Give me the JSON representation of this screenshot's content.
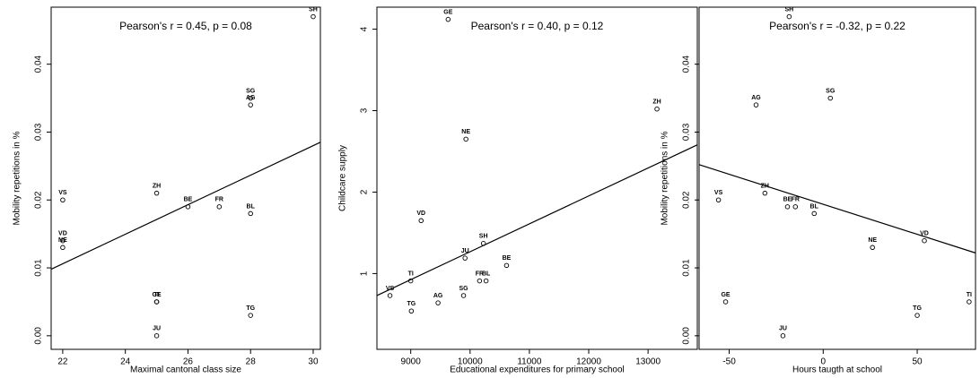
{
  "chart_data": [
    {
      "type": "scatter",
      "annotation": "Pearson's r = 0.45, p = 0.08",
      "xlabel": "Maximal cantonal class size",
      "ylabel": "Mobility repetitions in %",
      "point_labels": [
        "VS",
        "VD",
        "NE",
        "ZH",
        "BE",
        "FR",
        "BL",
        "GE",
        "TI",
        "TG",
        "JU",
        "SH",
        "SG",
        "AG"
      ],
      "x": [
        22,
        22,
        22,
        25,
        26,
        27,
        28,
        25,
        25,
        28,
        25,
        30,
        28,
        28
      ],
      "values": [
        0.02,
        0.014,
        0.013,
        0.021,
        0.019,
        0.019,
        0.018,
        0.005,
        0.005,
        0.003,
        0.0,
        0.047,
        0.035,
        0.034
      ],
      "color": "#000000",
      "trend": {
        "x": [
          21.63,
          30.23
        ],
        "y": [
          0.0098,
          0.0285
        ]
      },
      "xlim": [
        21.63,
        30.23
      ],
      "ylim": [
        -0.002,
        0.0484
      ],
      "xticks": [
        22,
        24,
        26,
        28,
        30
      ],
      "yticks": [
        {
          "value": 0,
          "label": "0.00"
        },
        0.01,
        0.02,
        0.03,
        0.04
      ]
    },
    {
      "type": "scatter",
      "annotation": "Pearson's r = 0.40, p = 0.12",
      "xlabel": "Educational expenditures for primary school",
      "ylabel": "Childcare supply",
      "point_labels": [
        "GE",
        "ZH",
        "NE",
        "VD",
        "SH",
        "JU",
        "BE",
        "FR",
        "BL",
        "TI",
        "VS",
        "AG",
        "SG",
        "TG"
      ],
      "x": [
        9630,
        13150,
        9930,
        9175,
        10225,
        9915,
        10615,
        10160,
        10270,
        9000,
        8650,
        9460,
        9890,
        9010
      ],
      "values": [
        4.12,
        3.02,
        2.65,
        1.65,
        1.37,
        1.19,
        1.1,
        0.91,
        0.91,
        0.91,
        0.73,
        0.64,
        0.73,
        0.54
      ],
      "color": "#000000",
      "trend": {
        "x": [
          8430,
          13830
        ],
        "y": [
          0.73,
          2.58
        ]
      },
      "xlim": [
        8430,
        13830
      ],
      "ylim": [
        0.07,
        4.27
      ],
      "xticks": [
        9000,
        10000,
        11000,
        12000,
        13000
      ],
      "yticks": [
        1,
        2,
        3,
        4
      ]
    },
    {
      "type": "scatter",
      "annotation": "Pearson's r = -0.32, p = 0.22",
      "xlabel": "Hours taugth at school",
      "ylabel": "Mobility repetitions in %",
      "point_labels": [
        "SH",
        "SG",
        "AG",
        "ZH",
        "VS",
        "BE",
        "FR",
        "BL",
        "NE",
        "VD",
        "GE",
        "TG",
        "TI",
        "JU"
      ],
      "x": [
        -18.1,
        3.8,
        -35.7,
        -31,
        -55.7,
        -19,
        -14.8,
        -4.8,
        26.2,
        53.8,
        -51.9,
        50,
        77.6,
        -21.4
      ],
      "values": [
        0.047,
        0.035,
        0.034,
        0.021,
        0.02,
        0.019,
        0.019,
        0.018,
        0.013,
        0.014,
        0.005,
        0.003,
        0.005,
        0.0
      ],
      "color": "#000000",
      "trend": {
        "x": [
          -66,
          81
        ],
        "y": [
          0.0252,
          0.0122
        ]
      },
      "xlim": [
        -66,
        81
      ],
      "ylim": [
        -0.002,
        0.0484
      ],
      "xticks": [
        -50,
        0,
        50
      ],
      "yticks": [
        {
          "value": 0,
          "label": "0.00"
        },
        0.01,
        0.02,
        0.03,
        0.04
      ]
    }
  ]
}
